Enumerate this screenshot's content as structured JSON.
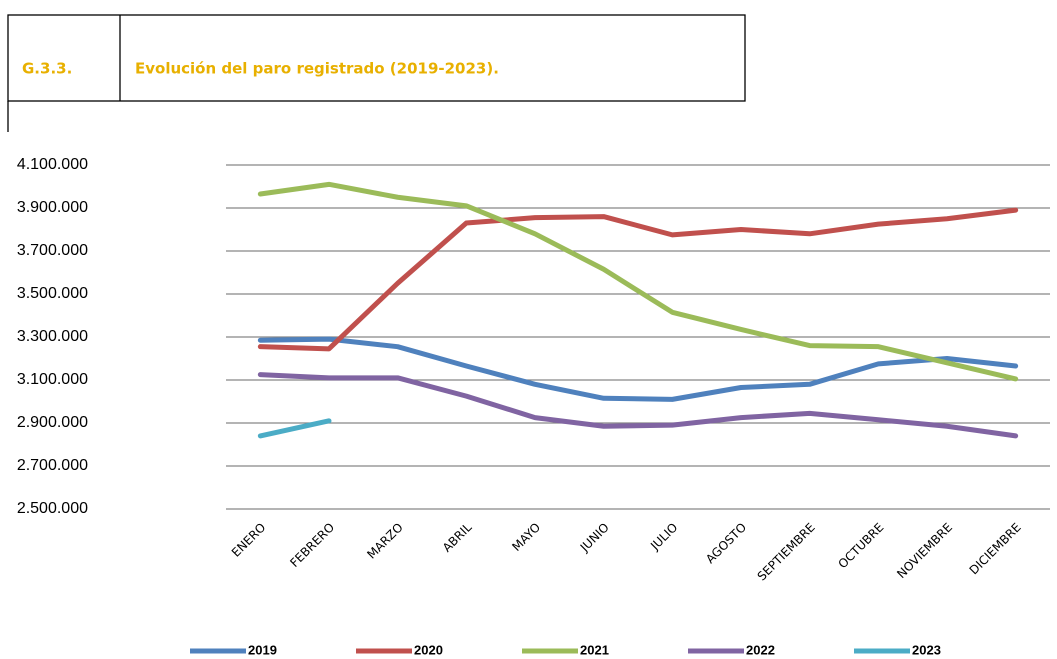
{
  "header": {
    "code": "G.3.3."
  },
  "chart_data": {
    "type": "line",
    "title": "Evolución del paro registrado (2019-2023).",
    "categories": [
      "ENERO",
      "FEBRERO",
      "MARZO",
      "ABRIL",
      "MAYO",
      "JUNIO",
      "JULIO",
      "AGOSTO",
      "SEPTIEMBRE",
      "OCTUBRE",
      "NOVIEMBRE",
      "DICIEMBRE"
    ],
    "series": [
      {
        "name": "2019",
        "color": "#4f81bd",
        "values": [
          3285000,
          3290000,
          3255000,
          3165000,
          3080000,
          3015000,
          3010000,
          3065000,
          3080000,
          3175000,
          3200000,
          3165000
        ]
      },
      {
        "name": "2020",
        "color": "#c0504d",
        "values": [
          3255000,
          3245000,
          3550000,
          3830000,
          3855000,
          3860000,
          3775000,
          3800000,
          3780000,
          3825000,
          3850000,
          3890000
        ]
      },
      {
        "name": "2021",
        "color": "#9bbb59",
        "values": [
          3965000,
          4010000,
          3950000,
          3910000,
          3780000,
          3615000,
          3415000,
          3335000,
          3260000,
          3255000,
          3180000,
          3105000
        ]
      },
      {
        "name": "2022",
        "color": "#8064a2",
        "values": [
          3125000,
          3110000,
          3110000,
          3025000,
          2925000,
          2885000,
          2890000,
          2925000,
          2945000,
          2915000,
          2885000,
          2840000
        ]
      },
      {
        "name": "2023",
        "color": "#4bacc6",
        "values": [
          2840000,
          2910000,
          null,
          null,
          null,
          null,
          null,
          null,
          null,
          null,
          null,
          null
        ]
      }
    ],
    "ylim": [
      2500000,
      4100000
    ],
    "yticks": [
      {
        "value": 2500000,
        "label": "2.500.000"
      },
      {
        "value": 2700000,
        "label": "2.700.000"
      },
      {
        "value": 2900000,
        "label": "2.900.000"
      },
      {
        "value": 3100000,
        "label": "3.100.000"
      },
      {
        "value": 3300000,
        "label": "3.300.000"
      },
      {
        "value": 3500000,
        "label": "3.500.000"
      },
      {
        "value": 3700000,
        "label": "3.700.000"
      },
      {
        "value": 3900000,
        "label": "3.900.000"
      },
      {
        "value": 4100000,
        "label": "4.100.000"
      }
    ],
    "grid": true,
    "legend": "bottom"
  }
}
